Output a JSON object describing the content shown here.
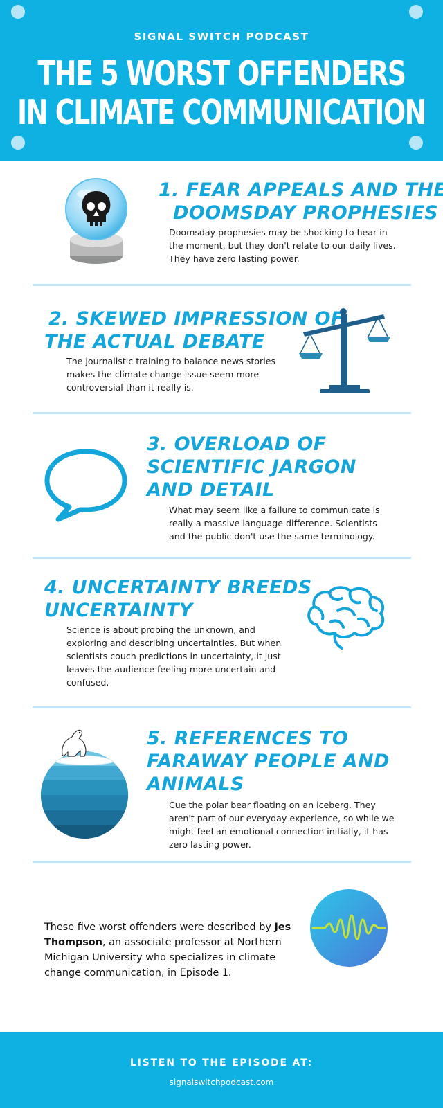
{
  "header": {
    "podcast_name": "SIGNAL SWITCH PODCAST",
    "title_line1": "THE 5 WORST OFFENDERS",
    "title_line2": "IN CLIMATE COMMUNICATION"
  },
  "offenders": [
    {
      "heading_line1": "1. FEAR APPEALS AND THE",
      "heading_line2": "DOOMSDAY PROPHESIES",
      "body": "Doomsday prophesies may be shocking to hear in the moment, but they don't relate to our daily lives. They have zero lasting power.",
      "icon": "skull-crystal-ball-icon"
    },
    {
      "heading_line1": "2. SKEWED IMPRESSION OF",
      "heading_line2": "THE ACTUAL DEBATE",
      "body": "The journalistic training to balance news stories makes the climate change issue seem more controversial than it really is.",
      "icon": "balance-scale-icon"
    },
    {
      "heading_line1": "3. OVERLOAD OF",
      "heading_line2": "SCIENTIFIC JARGON",
      "heading_line3": "AND DETAIL",
      "body": "What may seem like a failure to communicate is really a massive language difference. Scientists and the public don't use the same terminology.",
      "icon": "speech-bubble-icon"
    },
    {
      "heading_line1": "4. UNCERTAINTY BREEDS",
      "heading_line2": "UNCERTAINTY",
      "body": "Science is about probing the unknown, and exploring and describing uncertainties. But when scientists couch predictions in uncertainty, it just leaves the audience feeling more uncertain and confused.",
      "icon": "brain-icon"
    },
    {
      "heading_line1": "5. REFERENCES TO",
      "heading_line2": "FARAWAY PEOPLE AND",
      "heading_line3": "ANIMALS",
      "body": "Cue the polar bear floating on an iceberg. They aren't part of our everyday experience, so while we might feel an emotional connection initially, it has zero lasting power.",
      "icon": "polar-bear-globe-icon"
    }
  ],
  "credit": {
    "intro": "These five worst offenders were described by",
    "name": "Jes Thompson",
    "rest": ", an associate professor at Northern Michigan University who specializes in climate change communication, in Episode 1.",
    "icon": "sound-wave-icon"
  },
  "footer": {
    "title": "LISTEN TO THE EPISODE AT:",
    "url": "signalswitchpodcast.com"
  },
  "colors": {
    "brand_blue": "#0fb0e2",
    "heading_blue": "#14a6db",
    "divider": "#bfe5f6"
  }
}
